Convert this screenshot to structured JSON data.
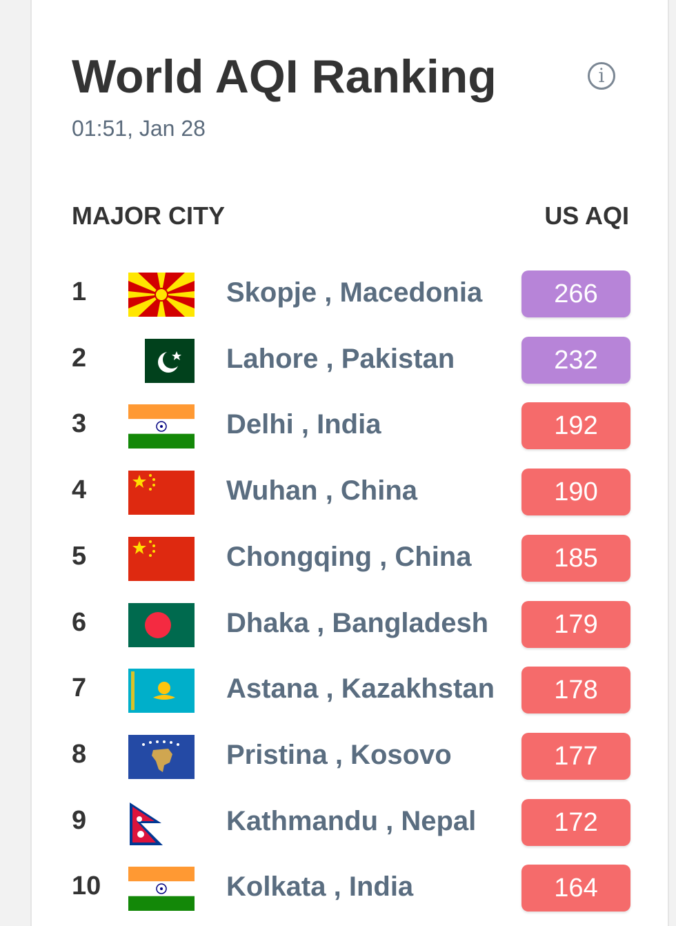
{
  "header": {
    "title": "World AQI Ranking",
    "timestamp": "01:51, Jan 28",
    "info_icon": "info-circle-icon",
    "info_glyph": "i"
  },
  "table": {
    "col_city": "MAJOR CITY",
    "col_aqi": "US AQI",
    "rows": [
      {
        "rank": "1",
        "city": "Skopje , Macedonia",
        "aqi": "266",
        "flag": "north-macedonia-flag-icon",
        "color": "#b784d8"
      },
      {
        "rank": "2",
        "city": "Lahore , Pakistan",
        "aqi": "232",
        "flag": "pakistan-flag-icon",
        "color": "#b784d8"
      },
      {
        "rank": "3",
        "city": "Delhi , India",
        "aqi": "192",
        "flag": "india-flag-icon",
        "color": "#f56b6b"
      },
      {
        "rank": "4",
        "city": "Wuhan , China",
        "aqi": "190",
        "flag": "china-flag-icon",
        "color": "#f56b6b"
      },
      {
        "rank": "5",
        "city": "Chongqing , China",
        "aqi": "185",
        "flag": "china-flag-icon",
        "color": "#f56b6b"
      },
      {
        "rank": "6",
        "city": "Dhaka , Bangladesh",
        "aqi": "179",
        "flag": "bangladesh-flag-icon",
        "color": "#f56b6b"
      },
      {
        "rank": "7",
        "city": "Astana , Kazakhstan",
        "aqi": "178",
        "flag": "kazakhstan-flag-icon",
        "color": "#f56b6b"
      },
      {
        "rank": "8",
        "city": "Pristina , Kosovo",
        "aqi": "177",
        "flag": "kosovo-flag-icon",
        "color": "#f56b6b"
      },
      {
        "rank": "9",
        "city": "Kathmandu , Nepal",
        "aqi": "172",
        "flag": "nepal-flag-icon",
        "color": "#f56b6b"
      },
      {
        "rank": "10",
        "city": "Kolkata , India",
        "aqi": "164",
        "flag": "india-flag-icon",
        "color": "#f56b6b"
      }
    ]
  }
}
